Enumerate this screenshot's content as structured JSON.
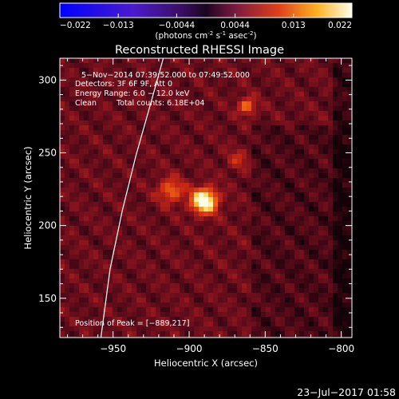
{
  "chart_data": {
    "type": "heatmap",
    "title": "Reconstructed RHESSI Image",
    "colorbar": {
      "range": [
        -0.022,
        0.022
      ],
      "tick_labels": [
        "-0.022",
        "-0.013",
        "-0.0044",
        "0.0044",
        "0.013",
        "0.022"
      ],
      "unit_main": "(photons cm",
      "unit_sup1": "-2",
      "unit_mid": " s",
      "unit_sup2": "-1",
      "unit_mid2": " asec",
      "unit_sup3": "-2",
      "unit_end": ")"
    },
    "xlabel": "Heliocentric X (arcsec)",
    "ylabel": "Heliocentric Y (arcsec)",
    "xlim": [
      -985,
      -793
    ],
    "ylim": [
      123,
      315
    ],
    "x_ticks": [
      -950,
      -900,
      -850,
      -800
    ],
    "x_tick_labels": [
      "−950",
      "−900",
      "−850",
      "−800"
    ],
    "y_ticks": [
      150,
      200,
      250,
      300
    ],
    "y_tick_labels": [
      "150",
      "200",
      "250",
      "300"
    ],
    "annotations": {
      "time_range": "5−Nov−2014 07:39:52.000 to 07:49:52.000",
      "detectors": "Detectors: 3F 6F 9F, Att 0",
      "energy": "Energy Range: 6.0 − 12.0 keV",
      "clean": "Clean",
      "counts": "Total counts: 6.18E+04",
      "peak": "Position of Peak = [−889,217]"
    },
    "sources": [
      {
        "x": -890,
        "y": 217,
        "peak": 0.022,
        "sigma": 6
      },
      {
        "x": -912,
        "y": 224,
        "peak": 0.01,
        "sigma": 6
      },
      {
        "x": -862,
        "y": 282,
        "peak": 0.011,
        "sigma": 4
      },
      {
        "x": -868,
        "y": 245,
        "peak": 0.005,
        "sigma": 5
      }
    ],
    "limb_curve": [
      [
        -958,
        123
      ],
      [
        -952,
        170
      ],
      [
        -944,
        210
      ],
      [
        -935,
        248
      ],
      [
        -925,
        285
      ],
      [
        -917,
        315
      ]
    ]
  },
  "footer": {
    "date": "23−Jul−2017 01:58"
  }
}
